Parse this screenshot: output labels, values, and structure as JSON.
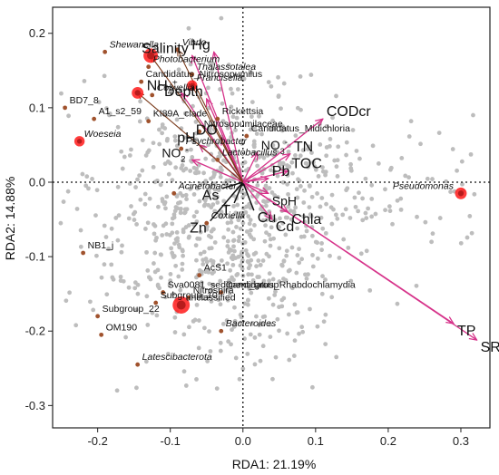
{
  "chart_data": {
    "type": "scatter",
    "xlabel": "RDA1: 21.19%",
    "ylabel": "RDA2: 14.88%",
    "xlim": [
      -0.262,
      0.34
    ],
    "ylim": [
      -0.33,
      0.235
    ],
    "x_ticks": [
      -0.2,
      -0.1,
      0.0,
      0.1,
      0.2,
      0.3
    ],
    "x_tick_labels": [
      "-0.2",
      "-0.1",
      "0.0",
      "0.1",
      "0.2",
      "0.3"
    ],
    "y_ticks": [
      0.2,
      0.1,
      0.0,
      -0.1,
      -0.2,
      -0.3
    ],
    "y_tick_labels": [
      "0.2",
      "0.1",
      "0.0",
      "-0.1",
      "-0.2",
      "-0.3"
    ],
    "reference_lines": {
      "x": 0,
      "y": 0,
      "style": "dotted"
    },
    "grid": false,
    "colors": {
      "background_points": "#bdbdbd",
      "taxa_points": "#c0392b",
      "taxa_points_halo": "#ff1a1a",
      "taxa_arrows": "#7a3a1a",
      "env_arrows": "#d6338a",
      "env_arrows_black": "#111111"
    },
    "environmental_vectors": [
      {
        "label": "Hg",
        "x": -0.04,
        "y": 0.175,
        "color": "#d6338a",
        "size": "big"
      },
      {
        "label": "Salinity",
        "x": -0.07,
        "y": 0.17,
        "color": "#d6338a",
        "size": "big"
      },
      {
        "label": "Depth",
        "x": -0.05,
        "y": 0.112,
        "color": "#d6338a",
        "size": "big"
      },
      {
        "label": "NH",
        "subscript": "4",
        "superscript": "+",
        "x": -0.085,
        "y": 0.12,
        "color": "#d6338a",
        "size": "big"
      },
      {
        "label": "CODcr",
        "x": 0.11,
        "y": 0.085,
        "color": "#d6338a",
        "size": "big"
      },
      {
        "label": "NO",
        "subscript": "3",
        "superscript": "-",
        "x": 0.02,
        "y": 0.04,
        "color": "#d6338a",
        "size": "normal"
      },
      {
        "label": "NO",
        "subscript": "2",
        "superscript": "-",
        "x": -0.07,
        "y": 0.03,
        "color": "#d6338a",
        "size": "normal"
      },
      {
        "label": "pH",
        "x": -0.06,
        "y": 0.05,
        "color": "#d6338a",
        "size": "big"
      },
      {
        "label": "DO",
        "x": -0.03,
        "y": 0.06,
        "color": "#d6338a",
        "size": "big"
      },
      {
        "label": "TN",
        "x": 0.065,
        "y": 0.038,
        "color": "#d6338a",
        "size": "big"
      },
      {
        "label": "TOC",
        "x": 0.062,
        "y": 0.015,
        "color": "#d6338a",
        "size": "big"
      },
      {
        "label": "Pb",
        "x": 0.035,
        "y": 0.005,
        "color": "#d6338a",
        "size": "big"
      },
      {
        "label": "SpH",
        "x": 0.035,
        "y": -0.015,
        "color": "#d6338a",
        "size": "normal"
      },
      {
        "label": "Chla",
        "x": 0.062,
        "y": -0.04,
        "color": "#d6338a",
        "size": "big"
      },
      {
        "label": "Cd",
        "x": 0.04,
        "y": -0.05,
        "color": "#d6338a",
        "size": "big"
      },
      {
        "label": "Cu",
        "x": 0.015,
        "y": -0.038,
        "color": "#111111",
        "size": "big"
      },
      {
        "label": "T",
        "x": -0.012,
        "y": -0.028,
        "color": "#111111",
        "size": "big"
      },
      {
        "label": "As",
        "x": -0.028,
        "y": -0.008,
        "color": "#111111",
        "size": "big"
      },
      {
        "label": "Zn",
        "x": -0.045,
        "y": -0.052,
        "color": "#111111",
        "size": "big"
      },
      {
        "label": "TP",
        "x": 0.29,
        "y": -0.19,
        "color": "#d6338a",
        "size": "big"
      },
      {
        "label": "SRP",
        "x": 0.322,
        "y": -0.212,
        "color": "#d6338a",
        "size": "big"
      }
    ],
    "taxa": [
      {
        "label": "Vibrio",
        "x": -0.09,
        "y": 0.178,
        "italic": true,
        "size": 5,
        "arrow": true
      },
      {
        "label": "Shewanella",
        "x": -0.19,
        "y": 0.175,
        "italic": true,
        "size": 4,
        "arrow": false
      },
      {
        "label": "Salinity_taxon",
        "label_text": "",
        "x": -0.127,
        "y": 0.17,
        "italic": false,
        "size": 9,
        "arrow": true
      },
      {
        "label": "Photobacterium",
        "x": -0.13,
        "y": 0.155,
        "italic": true,
        "size": 4,
        "arrow": false
      },
      {
        "label": "Thalassotalea",
        "x": -0.07,
        "y": 0.145,
        "italic": true,
        "size": 4,
        "arrow": false
      },
      {
        "label": "Francisella",
        "x": -0.07,
        "y": 0.13,
        "italic": true,
        "size": 6,
        "arrow": true
      },
      {
        "label": "Candidatus_Nitrosopumilus",
        "x": -0.14,
        "y": 0.135,
        "italic": false,
        "size": 4,
        "arrow": false
      },
      {
        "label": "NH4_taxon",
        "label_text": "",
        "x": -0.145,
        "y": 0.12,
        "italic": false,
        "size": 7,
        "arrow": true
      },
      {
        "label": "Colwellia",
        "x": -0.125,
        "y": 0.117,
        "italic": true,
        "size": 4,
        "arrow": false
      },
      {
        "label": "BD7_8",
        "x": -0.245,
        "y": 0.1,
        "italic": false,
        "size": 4,
        "arrow": false
      },
      {
        "label": "A1_s2_59",
        "x": -0.205,
        "y": 0.085,
        "italic": false,
        "size": 4,
        "arrow": false
      },
      {
        "label": "KI89A_clade",
        "x": -0.13,
        "y": 0.082,
        "italic": false,
        "size": 4,
        "arrow": false
      },
      {
        "label": "Rickettsia",
        "x": -0.035,
        "y": 0.085,
        "italic": false,
        "size": 4,
        "arrow": false
      },
      {
        "label": "Nitrosopumilaceae",
        "x": -0.06,
        "y": 0.068,
        "italic": false,
        "size": 4,
        "arrow": false
      },
      {
        "label": "Candidatus_Midichloria",
        "x": 0.005,
        "y": 0.062,
        "italic": false,
        "size": 4,
        "arrow": false
      },
      {
        "label": "Woeseia",
        "x": -0.225,
        "y": 0.055,
        "italic": true,
        "size": 6,
        "arrow": false
      },
      {
        "label": "Psychrobacter",
        "x": -0.085,
        "y": 0.045,
        "italic": true,
        "size": 5,
        "arrow": false
      },
      {
        "label": "Lactobacillus",
        "x": -0.035,
        "y": 0.03,
        "italic": true,
        "size": 4,
        "arrow": false
      },
      {
        "label": "Pseudomonas",
        "x": 0.3,
        "y": -0.015,
        "italic": true,
        "size": 7,
        "arrow": false
      },
      {
        "label": "Acinetobacter",
        "x": -0.095,
        "y": -0.015,
        "italic": true,
        "size": 5,
        "arrow": false
      },
      {
        "label": "Coxiella",
        "x": -0.05,
        "y": -0.055,
        "italic": true,
        "size": 5,
        "arrow": false
      },
      {
        "label": "NB1_j",
        "x": -0.22,
        "y": -0.095,
        "italic": false,
        "size": 5,
        "arrow": false
      },
      {
        "label": "AcS1",
        "x": -0.06,
        "y": -0.125,
        "italic": false,
        "size": 4,
        "arrow": false
      },
      {
        "label": "Candidatus_Rhabdochlamydia",
        "x": -0.03,
        "y": -0.148,
        "italic": false,
        "size": 4,
        "arrow": false
      },
      {
        "label": "Sva0081_sediment_group",
        "x": -0.11,
        "y": -0.148,
        "italic": false,
        "size": 5,
        "arrow": false
      },
      {
        "label": "Subgroup_10",
        "x": -0.12,
        "y": -0.162,
        "italic": false,
        "size": 4,
        "arrow": false
      },
      {
        "label": "Nitrospira",
        "x": -0.075,
        "y": -0.155,
        "italic": false,
        "size": 5,
        "arrow": false
      },
      {
        "label": "unclassified",
        "x": -0.085,
        "y": -0.165,
        "italic": false,
        "size": 11,
        "arrow": false
      },
      {
        "label": "Subgroup_22",
        "x": -0.2,
        "y": -0.18,
        "italic": false,
        "size": 4,
        "arrow": false
      },
      {
        "label": "OM190",
        "x": -0.195,
        "y": -0.205,
        "italic": false,
        "size": 4,
        "arrow": false
      },
      {
        "label": "Bacteroides",
        "x": -0.03,
        "y": -0.2,
        "italic": true,
        "size": 4,
        "arrow": false
      },
      {
        "label": "Latescibacterota",
        "x": -0.145,
        "y": -0.245,
        "italic": true,
        "size": 4,
        "arrow": false
      }
    ]
  }
}
